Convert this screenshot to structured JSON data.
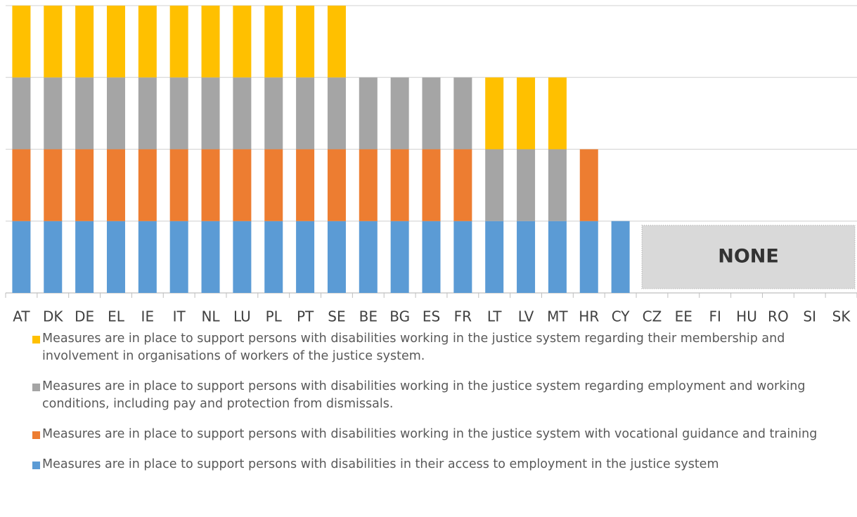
{
  "chart_data": {
    "type": "stacked_bar",
    "categories": [
      "AT",
      "DK",
      "DE",
      "EL",
      "IE",
      "IT",
      "NL",
      "LU",
      "PL",
      "PT",
      "SE",
      "BE",
      "BG",
      "ES",
      "FR",
      "LT",
      "LV",
      "MT",
      "HR",
      "CY",
      "CZ",
      "EE",
      "FI",
      "HU",
      "RO",
      "SI",
      "SK"
    ],
    "series": [
      {
        "name": "Measures are in place to support persons with disabilities in their access to employment in the justice system",
        "color": "#5B9BD5",
        "values": [
          1,
          1,
          1,
          1,
          1,
          1,
          1,
          1,
          1,
          1,
          1,
          1,
          1,
          1,
          1,
          1,
          1,
          1,
          1,
          1,
          0,
          0,
          0,
          0,
          0,
          0,
          0
        ]
      },
      {
        "name": "Measures are in place to support persons with disabilities working in the justice system with vocational guidance and training",
        "color": "#ED7D31",
        "values": [
          1,
          1,
          1,
          1,
          1,
          1,
          1,
          1,
          1,
          1,
          1,
          1,
          1,
          1,
          1,
          0,
          0,
          0,
          1,
          0,
          0,
          0,
          0,
          0,
          0,
          0,
          0
        ]
      },
      {
        "name": "Measures are in place to support persons with disabilities working in the justice system regarding employment and working conditions, including pay and protection from dismissals.",
        "color": "#A5A5A5",
        "values": [
          1,
          1,
          1,
          1,
          1,
          1,
          1,
          1,
          1,
          1,
          1,
          1,
          1,
          1,
          1,
          1,
          1,
          1,
          0,
          0,
          0,
          0,
          0,
          0,
          0,
          0,
          0
        ]
      },
      {
        "name": "Measures are in place to support persons with disabilities working in the justice system regarding their membership and involvement in organisations of workers of the justice system.",
        "color": "#FFC000",
        "values": [
          1,
          1,
          1,
          1,
          1,
          1,
          1,
          1,
          1,
          1,
          1,
          0,
          0,
          0,
          0,
          1,
          1,
          1,
          0,
          0,
          0,
          0,
          0,
          0,
          0,
          0,
          0
        ]
      }
    ],
    "ylim": [
      0,
      4
    ],
    "yticks": [
      0,
      1,
      2,
      3,
      4
    ],
    "grid": true,
    "annotation": "NONE",
    "legend": "bottom"
  }
}
